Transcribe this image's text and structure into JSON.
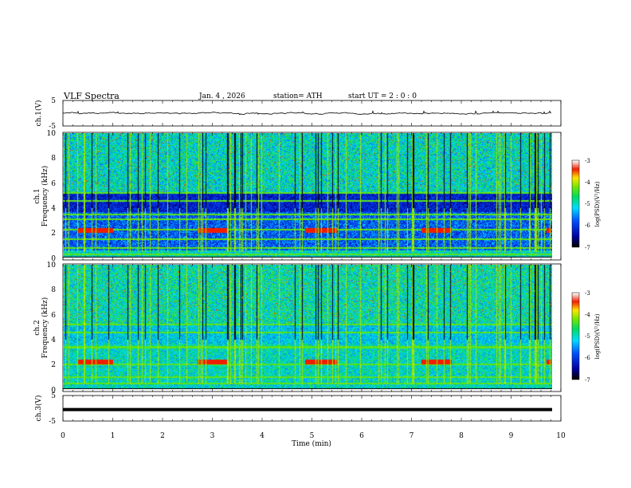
{
  "header": {
    "title": "VLF  Spectra",
    "date": "Jan. 4  , 2026",
    "station": "station= ATH",
    "start": "start  UT  =   2 : 0  : 0"
  },
  "chart_data": [
    {
      "type": "line",
      "panel": "ch1-waveform",
      "ylabel": "ch.1(V)",
      "yticks": [
        "5",
        "-5"
      ],
      "ylim": [
        -5,
        5
      ],
      "xlim": [
        0,
        10
      ],
      "series": [
        {
          "name": "ch.1",
          "value_range": [
            -0.6,
            0.8
          ],
          "mean": 0
        }
      ]
    },
    {
      "type": "heatmap",
      "panel": "ch1-spectrogram",
      "ylabel_line1": "ch.1",
      "ylabel_line2": "Frequency (kHz)",
      "yticks": [
        "0",
        "2",
        "4",
        "6",
        "8",
        "10"
      ],
      "ylim": [
        0,
        10
      ],
      "xlim": [
        0,
        9.8
      ],
      "colorbar": {
        "label": "log(PSD)(V²/Hz)",
        "ticks": [
          "-3",
          "-4",
          "-5",
          "-6",
          "-7"
        ],
        "range": [
          -7,
          -3
        ]
      },
      "bands_khz": [
        0.3,
        0.8,
        1.5,
        2.3,
        3.1,
        3.5,
        4.6,
        5.2
      ],
      "transmitter_segments_min": [
        [
          0.3,
          1.0
        ],
        [
          2.7,
          3.3
        ],
        [
          4.85,
          5.5
        ],
        [
          7.2,
          7.8
        ],
        [
          9.7,
          9.8
        ]
      ]
    },
    {
      "type": "heatmap",
      "panel": "ch2-spectrogram",
      "ylabel_line1": "ch.2",
      "ylabel_line2": "Frequency (kHz)",
      "yticks": [
        "0",
        "2",
        "4",
        "6",
        "8",
        "10"
      ],
      "ylim": [
        0,
        10
      ],
      "xlim": [
        0,
        9.8
      ],
      "colorbar": {
        "label": "log(PSD)(V²/Hz)",
        "ticks": [
          "-3",
          "-4",
          "-5",
          "-6",
          "-7"
        ],
        "range": [
          -7,
          -3
        ]
      },
      "bands_khz": [
        0.5,
        1.0,
        2.0,
        3.4,
        4.6,
        5.2
      ],
      "transmitter_segments_min": [
        [
          0.3,
          1.0
        ],
        [
          2.7,
          3.3
        ],
        [
          4.85,
          5.5
        ],
        [
          7.2,
          7.8
        ],
        [
          9.7,
          9.8
        ]
      ]
    },
    {
      "type": "line",
      "panel": "ch3-waveform",
      "ylabel": "ch.3(V)",
      "yticks": [
        "5",
        "-5"
      ],
      "ylim": [
        -5,
        5
      ],
      "xlim": [
        0,
        10
      ],
      "series": [
        {
          "name": "ch.3",
          "value": -0.5
        }
      ]
    }
  ],
  "xaxis": {
    "label": "Time  (min)",
    "ticks": [
      "0",
      "1",
      "2",
      "3",
      "4",
      "5",
      "6",
      "7",
      "8",
      "9",
      "10"
    ]
  }
}
